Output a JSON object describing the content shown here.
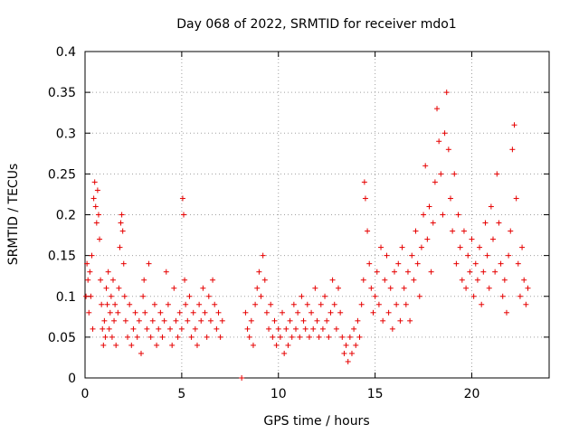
{
  "chart_data": {
    "type": "scatter",
    "title": "Day 068 of 2022, SRMTID for receiver mdo1",
    "xlabel": "GPS time / hours",
    "ylabel": "SRMTID / TECUs",
    "xlim": [
      0,
      24
    ],
    "ylim": [
      0,
      0.4
    ],
    "xticks": [
      0,
      5,
      10,
      15,
      20
    ],
    "xtick_labels": [
      "0",
      "5",
      "10",
      "15",
      "20"
    ],
    "yticks": [
      0,
      0.05,
      0.1,
      0.15,
      0.2,
      0.25,
      0.3,
      0.35,
      0.4
    ],
    "ytick_labels": [
      "0",
      "0.05",
      "0.1",
      "0.15",
      "0.2",
      "0.25",
      "0.3",
      "0.35",
      "0.4"
    ],
    "grid": true,
    "marker": "plus",
    "series_color": "#e60000",
    "series": [
      {
        "name": "mdo1",
        "points": [
          [
            0.05,
            0.1
          ],
          [
            0.1,
            0.14
          ],
          [
            0.15,
            0.12
          ],
          [
            0.2,
            0.08
          ],
          [
            0.25,
            0.13
          ],
          [
            0.3,
            0.1
          ],
          [
            0.35,
            0.15
          ],
          [
            0.4,
            0.06
          ],
          [
            0.45,
            0.22
          ],
          [
            0.5,
            0.24
          ],
          [
            0.55,
            0.21
          ],
          [
            0.6,
            0.19
          ],
          [
            0.65,
            0.23
          ],
          [
            0.7,
            0.2
          ],
          [
            0.75,
            0.17
          ],
          [
            0.8,
            0.12
          ],
          [
            0.85,
            0.09
          ],
          [
            0.9,
            0.06
          ],
          [
            0.95,
            0.04
          ],
          [
            1.0,
            0.07
          ],
          [
            1.05,
            0.05
          ],
          [
            1.1,
            0.11
          ],
          [
            1.15,
            0.09
          ],
          [
            1.2,
            0.13
          ],
          [
            1.25,
            0.06
          ],
          [
            1.3,
            0.08
          ],
          [
            1.35,
            0.1
          ],
          [
            1.4,
            0.05
          ],
          [
            1.45,
            0.12
          ],
          [
            1.5,
            0.07
          ],
          [
            1.55,
            0.09
          ],
          [
            1.6,
            0.04
          ],
          [
            1.7,
            0.08
          ],
          [
            1.75,
            0.11
          ],
          [
            1.8,
            0.16
          ],
          [
            1.85,
            0.19
          ],
          [
            1.9,
            0.2
          ],
          [
            1.95,
            0.18
          ],
          [
            2.0,
            0.14
          ],
          [
            2.05,
            0.1
          ],
          [
            2.1,
            0.07
          ],
          [
            2.2,
            0.05
          ],
          [
            2.3,
            0.09
          ],
          [
            2.4,
            0.04
          ],
          [
            2.5,
            0.06
          ],
          [
            2.6,
            0.08
          ],
          [
            2.7,
            0.05
          ],
          [
            2.8,
            0.07
          ],
          [
            2.9,
            0.03
          ],
          [
            3.0,
            0.1
          ],
          [
            3.05,
            0.12
          ],
          [
            3.1,
            0.08
          ],
          [
            3.2,
            0.06
          ],
          [
            3.3,
            0.14
          ],
          [
            3.4,
            0.05
          ],
          [
            3.5,
            0.07
          ],
          [
            3.6,
            0.09
          ],
          [
            3.7,
            0.04
          ],
          [
            3.8,
            0.06
          ],
          [
            3.9,
            0.08
          ],
          [
            4.0,
            0.05
          ],
          [
            4.1,
            0.07
          ],
          [
            4.2,
            0.13
          ],
          [
            4.3,
            0.09
          ],
          [
            4.4,
            0.06
          ],
          [
            4.5,
            0.04
          ],
          [
            4.6,
            0.11
          ],
          [
            4.7,
            0.07
          ],
          [
            4.8,
            0.05
          ],
          [
            4.9,
            0.08
          ],
          [
            5.0,
            0.06
          ],
          [
            5.05,
            0.22
          ],
          [
            5.1,
            0.2
          ],
          [
            5.15,
            0.12
          ],
          [
            5.2,
            0.09
          ],
          [
            5.3,
            0.07
          ],
          [
            5.4,
            0.1
          ],
          [
            5.5,
            0.05
          ],
          [
            5.6,
            0.08
          ],
          [
            5.7,
            0.06
          ],
          [
            5.8,
            0.04
          ],
          [
            5.9,
            0.09
          ],
          [
            6.0,
            0.07
          ],
          [
            6.1,
            0.11
          ],
          [
            6.2,
            0.08
          ],
          [
            6.3,
            0.05
          ],
          [
            6.4,
            0.1
          ],
          [
            6.5,
            0.07
          ],
          [
            6.6,
            0.12
          ],
          [
            6.7,
            0.09
          ],
          [
            6.8,
            0.06
          ],
          [
            6.9,
            0.08
          ],
          [
            7.0,
            0.05
          ],
          [
            7.1,
            0.07
          ],
          [
            8.1,
            0.0
          ],
          [
            8.3,
            0.08
          ],
          [
            8.4,
            0.06
          ],
          [
            8.5,
            0.05
          ],
          [
            8.6,
            0.07
          ],
          [
            8.7,
            0.04
          ],
          [
            8.8,
            0.09
          ],
          [
            8.9,
            0.11
          ],
          [
            9.0,
            0.13
          ],
          [
            9.1,
            0.1
          ],
          [
            9.2,
            0.15
          ],
          [
            9.3,
            0.12
          ],
          [
            9.4,
            0.08
          ],
          [
            9.5,
            0.06
          ],
          [
            9.6,
            0.09
          ],
          [
            9.7,
            0.05
          ],
          [
            9.8,
            0.07
          ],
          [
            9.9,
            0.04
          ],
          [
            10.0,
            0.06
          ],
          [
            10.1,
            0.05
          ],
          [
            10.2,
            0.08
          ],
          [
            10.3,
            0.03
          ],
          [
            10.4,
            0.06
          ],
          [
            10.5,
            0.04
          ],
          [
            10.6,
            0.07
          ],
          [
            10.7,
            0.05
          ],
          [
            10.8,
            0.09
          ],
          [
            10.9,
            0.06
          ],
          [
            11.0,
            0.08
          ],
          [
            11.1,
            0.05
          ],
          [
            11.2,
            0.1
          ],
          [
            11.3,
            0.07
          ],
          [
            11.4,
            0.06
          ],
          [
            11.5,
            0.09
          ],
          [
            11.6,
            0.05
          ],
          [
            11.7,
            0.08
          ],
          [
            11.8,
            0.06
          ],
          [
            11.9,
            0.11
          ],
          [
            12.0,
            0.07
          ],
          [
            12.1,
            0.05
          ],
          [
            12.2,
            0.09
          ],
          [
            12.3,
            0.06
          ],
          [
            12.4,
            0.1
          ],
          [
            12.5,
            0.07
          ],
          [
            12.6,
            0.05
          ],
          [
            12.7,
            0.08
          ],
          [
            12.8,
            0.12
          ],
          [
            12.9,
            0.09
          ],
          [
            13.0,
            0.06
          ],
          [
            13.1,
            0.11
          ],
          [
            13.2,
            0.08
          ],
          [
            13.3,
            0.05
          ],
          [
            13.4,
            0.03
          ],
          [
            13.5,
            0.04
          ],
          [
            13.6,
            0.02
          ],
          [
            13.7,
            0.05
          ],
          [
            13.8,
            0.03
          ],
          [
            13.9,
            0.06
          ],
          [
            14.0,
            0.04
          ],
          [
            14.1,
            0.07
          ],
          [
            14.2,
            0.05
          ],
          [
            14.3,
            0.09
          ],
          [
            14.4,
            0.12
          ],
          [
            14.45,
            0.24
          ],
          [
            14.5,
            0.22
          ],
          [
            14.6,
            0.18
          ],
          [
            14.7,
            0.14
          ],
          [
            14.8,
            0.11
          ],
          [
            14.9,
            0.08
          ],
          [
            15.0,
            0.1
          ],
          [
            15.1,
            0.13
          ],
          [
            15.2,
            0.09
          ],
          [
            15.3,
            0.16
          ],
          [
            15.4,
            0.07
          ],
          [
            15.5,
            0.12
          ],
          [
            15.6,
            0.15
          ],
          [
            15.7,
            0.08
          ],
          [
            15.8,
            0.11
          ],
          [
            15.9,
            0.06
          ],
          [
            16.0,
            0.13
          ],
          [
            16.1,
            0.09
          ],
          [
            16.2,
            0.14
          ],
          [
            16.3,
            0.07
          ],
          [
            16.4,
            0.16
          ],
          [
            16.5,
            0.11
          ],
          [
            16.6,
            0.09
          ],
          [
            16.7,
            0.13
          ],
          [
            16.8,
            0.07
          ],
          [
            16.9,
            0.15
          ],
          [
            17.0,
            0.12
          ],
          [
            17.1,
            0.18
          ],
          [
            17.2,
            0.14
          ],
          [
            17.3,
            0.1
          ],
          [
            17.4,
            0.16
          ],
          [
            17.5,
            0.2
          ],
          [
            17.6,
            0.26
          ],
          [
            17.7,
            0.17
          ],
          [
            17.8,
            0.21
          ],
          [
            17.9,
            0.13
          ],
          [
            18.0,
            0.19
          ],
          [
            18.1,
            0.24
          ],
          [
            18.2,
            0.33
          ],
          [
            18.3,
            0.29
          ],
          [
            18.4,
            0.25
          ],
          [
            18.5,
            0.2
          ],
          [
            18.6,
            0.3
          ],
          [
            18.7,
            0.35
          ],
          [
            18.8,
            0.28
          ],
          [
            18.9,
            0.22
          ],
          [
            19.0,
            0.18
          ],
          [
            19.1,
            0.25
          ],
          [
            19.2,
            0.14
          ],
          [
            19.3,
            0.2
          ],
          [
            19.4,
            0.16
          ],
          [
            19.5,
            0.12
          ],
          [
            19.6,
            0.18
          ],
          [
            19.7,
            0.11
          ],
          [
            19.8,
            0.15
          ],
          [
            19.9,
            0.13
          ],
          [
            20.0,
            0.17
          ],
          [
            20.1,
            0.1
          ],
          [
            20.2,
            0.14
          ],
          [
            20.3,
            0.12
          ],
          [
            20.4,
            0.16
          ],
          [
            20.5,
            0.09
          ],
          [
            20.6,
            0.13
          ],
          [
            20.7,
            0.19
          ],
          [
            20.8,
            0.15
          ],
          [
            20.9,
            0.11
          ],
          [
            21.0,
            0.21
          ],
          [
            21.1,
            0.17
          ],
          [
            21.2,
            0.13
          ],
          [
            21.3,
            0.25
          ],
          [
            21.4,
            0.19
          ],
          [
            21.5,
            0.14
          ],
          [
            21.6,
            0.1
          ],
          [
            21.7,
            0.12
          ],
          [
            21.8,
            0.08
          ],
          [
            21.9,
            0.15
          ],
          [
            22.0,
            0.18
          ],
          [
            22.1,
            0.28
          ],
          [
            22.2,
            0.31
          ],
          [
            22.3,
            0.22
          ],
          [
            22.4,
            0.14
          ],
          [
            22.5,
            0.1
          ],
          [
            22.6,
            0.16
          ],
          [
            22.7,
            0.12
          ],
          [
            22.8,
            0.09
          ],
          [
            22.9,
            0.11
          ]
        ]
      }
    ]
  }
}
